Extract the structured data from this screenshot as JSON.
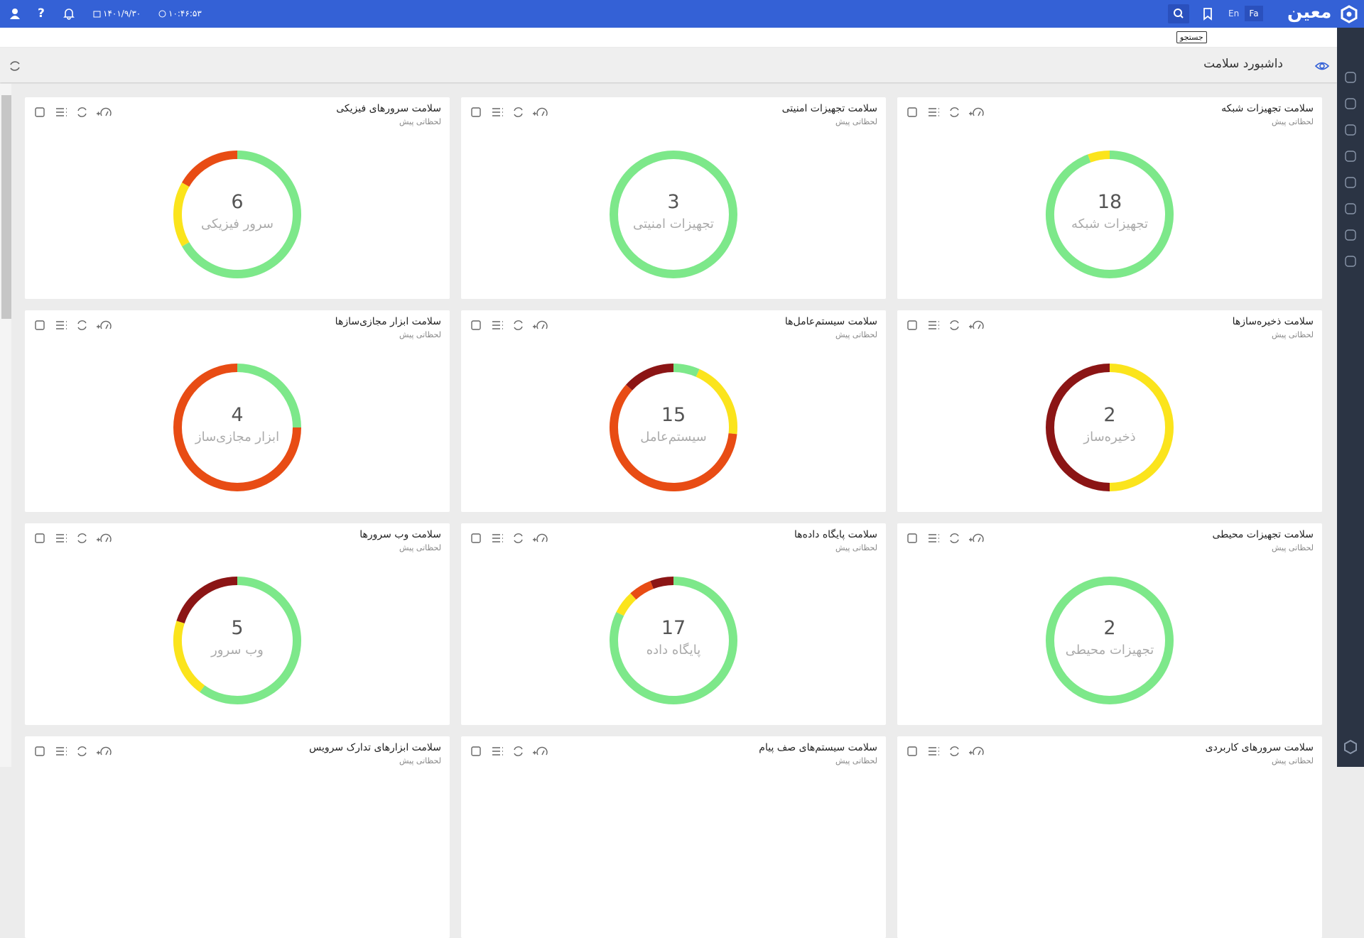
{
  "topbar": {
    "logo": "معین",
    "languages": [
      "Fa",
      "En"
    ],
    "search_tooltip": "جستجو",
    "date": "۱۴۰۱/۹/۳۰",
    "time": "۱۰:۴۶:۵۳"
  },
  "page": {
    "title": "داشبورد سلامت"
  },
  "cards": [
    {
      "title": "سلامت تجهیزات شبکه",
      "subtitle": "لحظاتی پیش",
      "total": 18,
      "label": "تجهیزات شبکه",
      "segments": [
        {
          "color": "#7de88a",
          "value": 17
        },
        {
          "color": "#fbe41c",
          "value": 1
        }
      ]
    },
    {
      "title": "سلامت تجهیزات امنیتی",
      "subtitle": "لحظاتی پیش",
      "total": 3,
      "label": "تجهیزات امنیتی",
      "segments": [
        {
          "color": "#7de88a",
          "value": 3
        }
      ]
    },
    {
      "title": "سلامت سرورهای فیزیکی",
      "subtitle": "لحظاتی پیش",
      "total": 6,
      "label": "سرور فیزیکی",
      "segments": [
        {
          "color": "#7de88a",
          "value": 4
        },
        {
          "color": "#fbe41c",
          "value": 1
        },
        {
          "color": "#e84c14",
          "value": 1
        }
      ]
    },
    {
      "title": "سلامت ذخیره‌سازها",
      "subtitle": "لحظاتی پیش",
      "total": 2,
      "label": "ذخیره‌ساز",
      "segments": [
        {
          "color": "#fbe41c",
          "value": 1
        },
        {
          "color": "#8b1515",
          "value": 1
        }
      ]
    },
    {
      "title": "سلامت سیستم‌عامل‌ها",
      "subtitle": "لحظاتی پیش",
      "total": 15,
      "label": "سیستم‌عامل",
      "segments": [
        {
          "color": "#7de88a",
          "value": 1
        },
        {
          "color": "#fbe41c",
          "value": 3
        },
        {
          "color": "#e84c14",
          "value": 9
        },
        {
          "color": "#8b1515",
          "value": 2
        }
      ]
    },
    {
      "title": "سلامت ابزار مجازی‌سازها",
      "subtitle": "لحظاتی پیش",
      "total": 4,
      "label": "ابزار مجازی‌ساز",
      "segments": [
        {
          "color": "#7de88a",
          "value": 1
        },
        {
          "color": "#e84c14",
          "value": 3
        }
      ]
    },
    {
      "title": "سلامت تجهیزات محیطی",
      "subtitle": "لحظاتی پیش",
      "total": 2,
      "label": "تجهیزات محیطی",
      "segments": [
        {
          "color": "#7de88a",
          "value": 2
        }
      ]
    },
    {
      "title": "سلامت پایگاه داده‌ها",
      "subtitle": "لحظاتی پیش",
      "total": 17,
      "label": "پایگاه داده",
      "segments": [
        {
          "color": "#7de88a",
          "value": 14
        },
        {
          "color": "#fbe41c",
          "value": 1
        },
        {
          "color": "#e84c14",
          "value": 1
        },
        {
          "color": "#8b1515",
          "value": 1
        }
      ]
    },
    {
      "title": "سلامت وب سرورها",
      "subtitle": "لحظاتی پیش",
      "total": 5,
      "label": "وب سرور",
      "segments": [
        {
          "color": "#7de88a",
          "value": 3
        },
        {
          "color": "#fbe41c",
          "value": 1
        },
        {
          "color": "#8b1515",
          "value": 1
        }
      ]
    },
    {
      "title": "سلامت سرورهای کاربردی",
      "subtitle": "لحظاتی پیش"
    },
    {
      "title": "سلامت سیستم‌های صف پیام",
      "subtitle": "لحظاتی پیش"
    },
    {
      "title": "سلامت ابزارهای تدارک سرویس",
      "subtitle": "لحظاتی پیش"
    }
  ]
}
